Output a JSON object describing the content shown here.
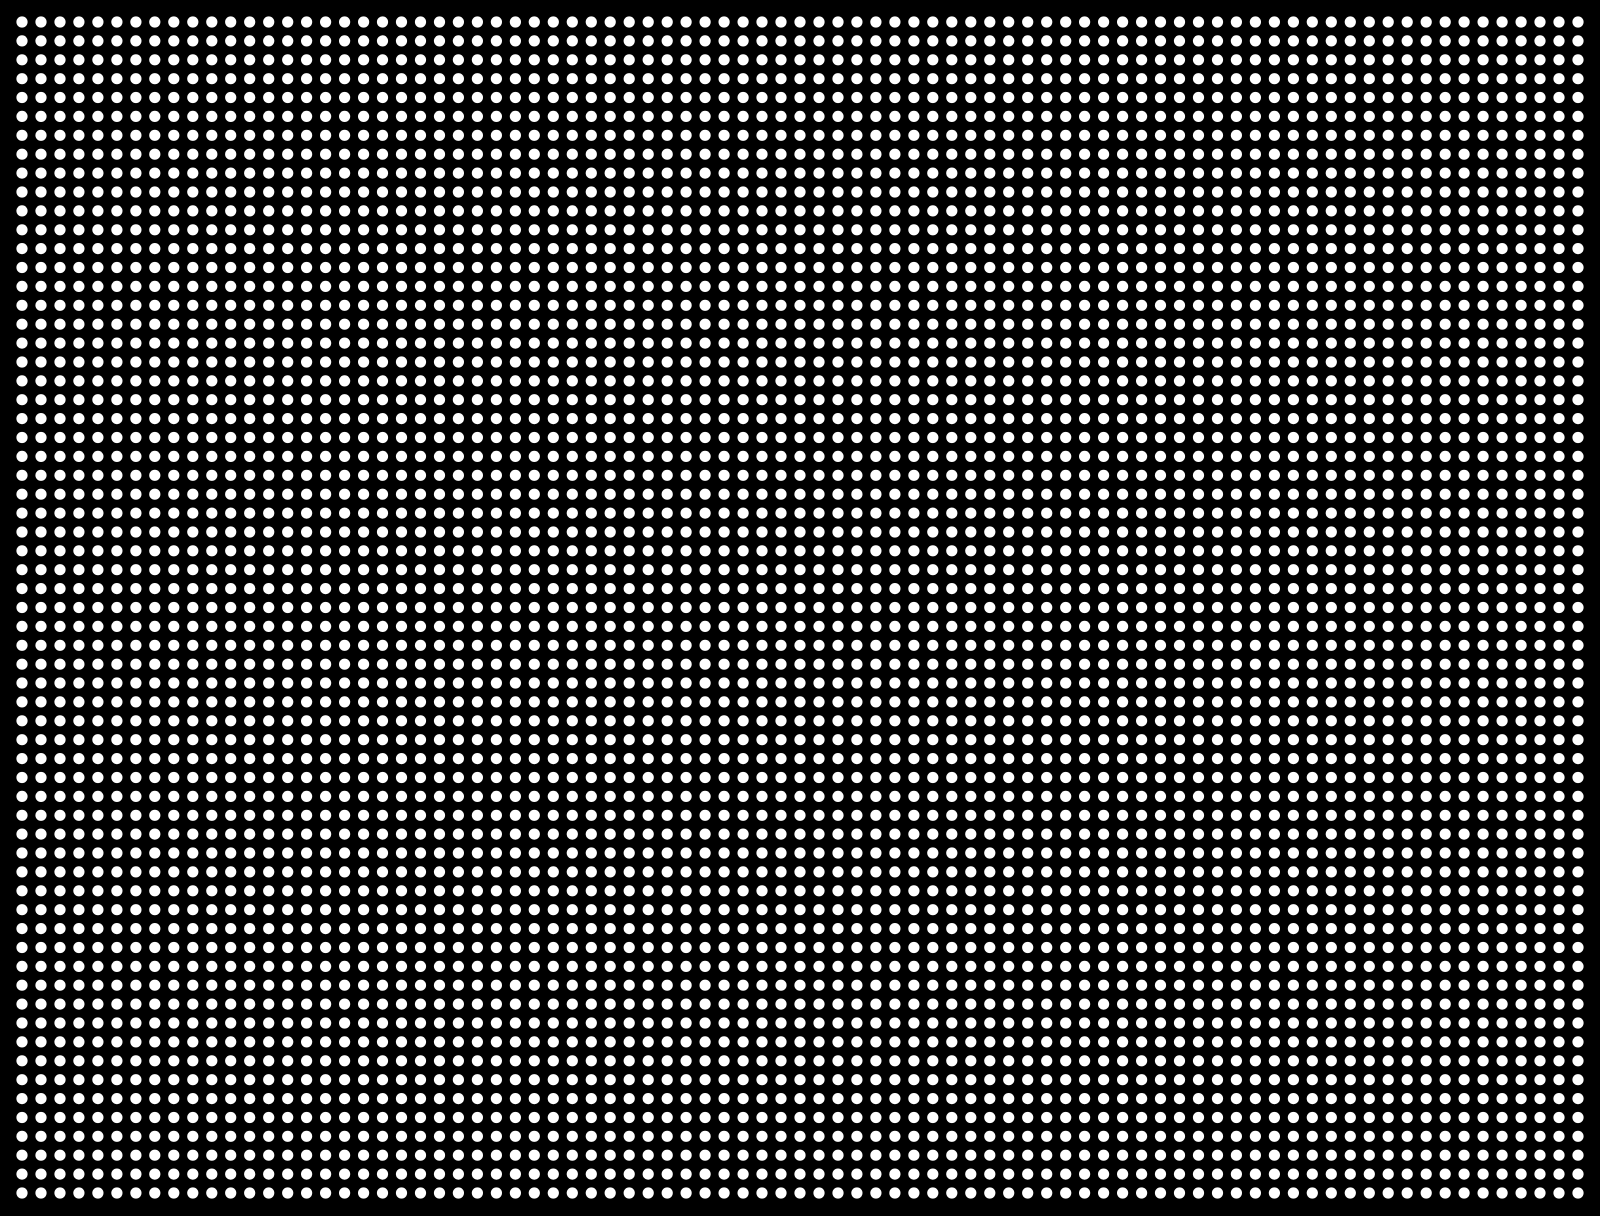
{
  "colors": {
    "background": "#000000",
    "dot": "#ffffff"
  },
  "grid": {
    "columns": 83,
    "rows": 63
  }
}
